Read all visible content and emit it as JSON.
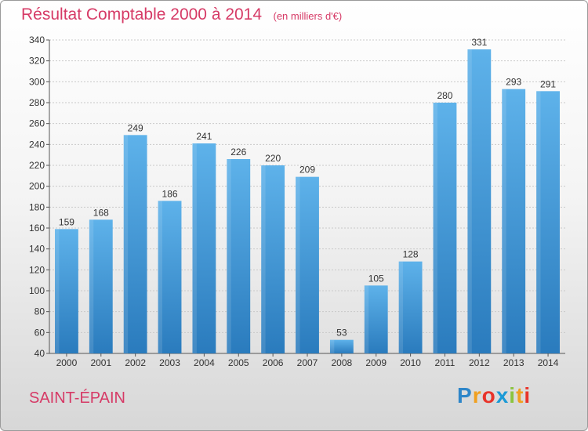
{
  "title": "Résultat Comptable 2000 à 2014",
  "unit_note": "(en milliers d'€)",
  "place": "SAINT-ÉPAIN",
  "brand": {
    "letters": [
      "P",
      "r",
      "o",
      "x",
      "i",
      "t",
      "i"
    ],
    "colors": [
      "#2e86c9",
      "#f0a020",
      "#e8342a",
      "#1c9ad6",
      "#8bc43f",
      "#f0a020",
      "#e8342a"
    ]
  },
  "colors": {
    "bar_top": "#5eb2ea",
    "bar_bottom": "#2a7bbd",
    "accent_text": "#d63a66"
  },
  "chart_data": {
    "type": "bar",
    "categories": [
      "2000",
      "2001",
      "2002",
      "2003",
      "2004",
      "2005",
      "2006",
      "2007",
      "2008",
      "2009",
      "2010",
      "2011",
      "2012",
      "2013",
      "2014"
    ],
    "values": [
      159,
      168,
      249,
      186,
      241,
      226,
      220,
      209,
      53,
      105,
      128,
      280,
      331,
      293,
      291
    ],
    "ylim": [
      40,
      340
    ],
    "yticks": [
      40,
      60,
      80,
      100,
      120,
      140,
      160,
      180,
      200,
      220,
      240,
      260,
      280,
      300,
      320,
      340
    ],
    "data_labels": true,
    "grid": "y",
    "legend": "none"
  }
}
